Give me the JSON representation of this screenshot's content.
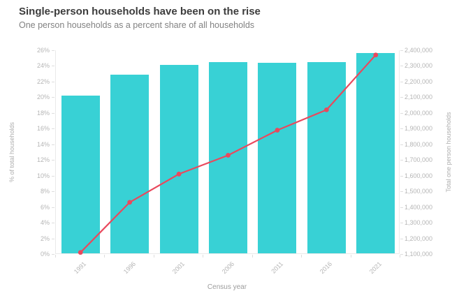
{
  "header": {
    "title": "Single-person households have been on the rise",
    "subtitle": "One person households as a percent share of all households"
  },
  "chart_data": {
    "type": "bar",
    "subtype": "bar-with-line-overlay",
    "title": "Single-person households have been on the rise",
    "subtitle": "One person households as a percent share of all households",
    "categories": [
      "1991",
      "1996",
      "2001",
      "2006",
      "2011",
      "2016",
      "2021"
    ],
    "series": [
      {
        "name": "% of total households",
        "type": "bar",
        "axis": "left",
        "color": "#38d1d5",
        "values": [
          20.1,
          22.8,
          24.0,
          24.4,
          24.3,
          24.4,
          25.6
        ]
      },
      {
        "name": "Total one person households",
        "type": "line",
        "axis": "right",
        "color": "#e9495d",
        "values": [
          1110000,
          1430000,
          1610000,
          1730000,
          1890000,
          2020000,
          2370000
        ]
      }
    ],
    "left_axis": {
      "label": "% of total households",
      "min": 0,
      "max": 26,
      "tick_step": 2,
      "tick_labels": [
        "0%",
        "2%",
        "4%",
        "6%",
        "8%",
        "10%",
        "12%",
        "14%",
        "16%",
        "18%",
        "20%",
        "22%",
        "24%",
        "26%"
      ]
    },
    "right_axis": {
      "label": "Total one person households",
      "min": 1100000,
      "max": 2400000,
      "tick_step": 100000,
      "tick_labels": [
        "1,100,000",
        "1,200,000",
        "1,300,000",
        "1,400,000",
        "1,500,000",
        "1,600,000",
        "1,700,000",
        "1,800,000",
        "1,900,000",
        "2,000,000",
        "2,100,000",
        "2,200,000",
        "2,300,000",
        "2,400,000"
      ]
    },
    "x_axis": {
      "label": "Census year"
    },
    "grid": false,
    "legend": false
  }
}
